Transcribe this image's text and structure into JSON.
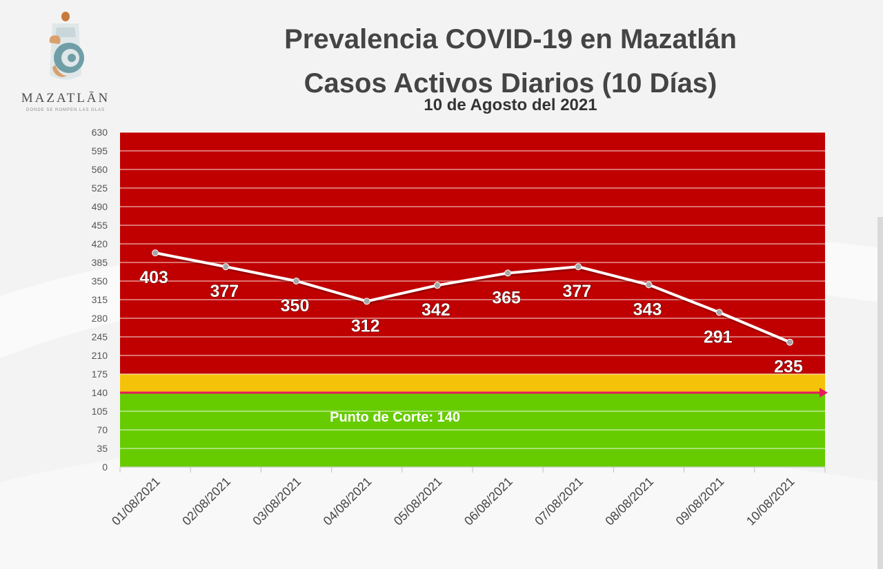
{
  "logo": {
    "name": "MAZATLĀN",
    "tagline": "DONDE SE ROMPEN LAS OLAS"
  },
  "header": {
    "title_line1": "Prevalencia COVID-19 en Mazatlán",
    "title_line2": "Casos Activos Diarios (10 Días)",
    "subtitle": "10 de Agosto del 2021"
  },
  "chart_data": {
    "type": "line",
    "title": "Prevalencia COVID-19 en Mazatlán — Casos Activos Diarios (10 Días)",
    "subtitle": "10 de Agosto del 2021",
    "xlabel": "",
    "ylabel": "",
    "categories": [
      "01/08/2021",
      "02/08/2021",
      "03/08/2021",
      "04/08/2021",
      "05/08/2021",
      "06/08/2021",
      "07/08/2021",
      "08/08/2021",
      "09/08/2021",
      "10/08/2021"
    ],
    "series": [
      {
        "values": [
          403,
          377,
          350,
          312,
          342,
          365,
          377,
          343,
          291,
          235
        ]
      }
    ],
    "ylim": [
      0,
      630
    ],
    "yticks": [
      0,
      35,
      70,
      105,
      140,
      175,
      210,
      245,
      280,
      315,
      350,
      385,
      420,
      455,
      490,
      525,
      560,
      595,
      630
    ],
    "grid": true,
    "bands": [
      {
        "from": 0,
        "to": 140,
        "color": "#66cc00"
      },
      {
        "from": 140,
        "to": 175,
        "color": "#f5c20a"
      },
      {
        "from": 175,
        "to": 630,
        "color": "#c00000"
      }
    ],
    "threshold": {
      "value": 140,
      "label": "Punto de Corte: 140",
      "color": "#e6195e"
    },
    "line_color": "#ffffff",
    "marker_color": "#a6a6a6"
  }
}
